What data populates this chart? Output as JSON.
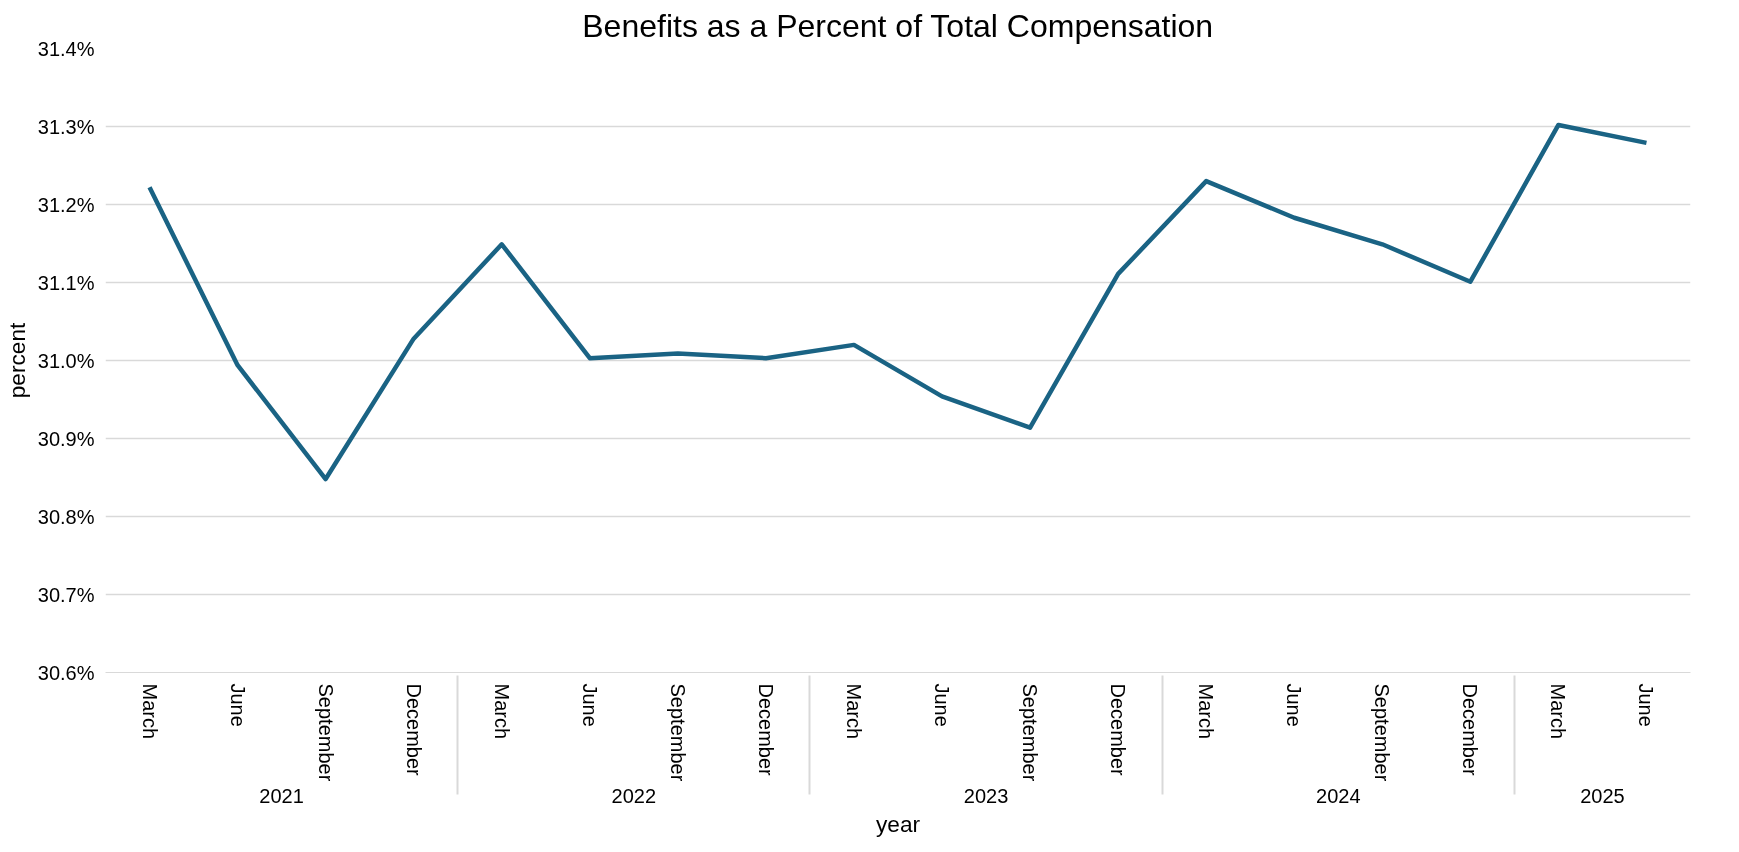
{
  "chart_data": {
    "type": "line",
    "title": "Benefits as a Percent of Total Compensation",
    "xlabel": "year",
    "ylabel": "percent",
    "categories": [
      "March",
      "June",
      "September",
      "December",
      "March",
      "June",
      "September",
      "December",
      "March",
      "June",
      "September",
      "December",
      "March",
      "June",
      "September",
      "December",
      "March",
      "June"
    ],
    "annotations": [
      "2021",
      "2022",
      "2023",
      "2024",
      "2025"
    ],
    "series": [
      {
        "color": "#1a6384",
        "values": [
          31.222,
          30.994,
          30.848,
          31.028,
          31.149,
          31.003,
          31.009,
          31.003,
          31.02,
          30.954,
          30.914,
          31.111,
          31.23,
          31.183,
          31.149,
          31.101,
          31.302,
          31.279
        ]
      }
    ],
    "ylim": [
      30.6,
      31.4
    ],
    "yticks": [
      {
        "value": 30.6,
        "label": "30.6%"
      },
      {
        "value": 30.7,
        "label": "30.7%"
      },
      {
        "value": 30.8,
        "label": "30.8%"
      },
      {
        "value": 30.9,
        "label": "30.9%"
      },
      {
        "value": 31.0,
        "label": "31.0%"
      },
      {
        "value": 31.1,
        "label": "31.1%"
      },
      {
        "value": 31.2,
        "label": "31.2%"
      },
      {
        "value": 31.3,
        "label": "31.3%"
      },
      {
        "value": 31.4,
        "label": "31.4%"
      }
    ],
    "grid": "y",
    "marker": "none",
    "line_style": "solid"
  }
}
